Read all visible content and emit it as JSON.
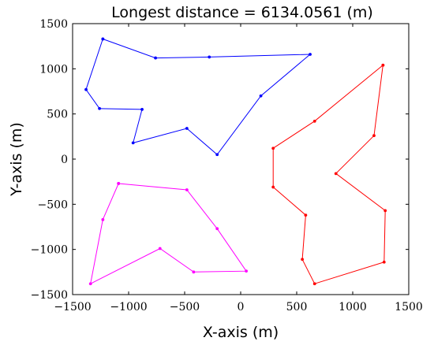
{
  "chart_data": {
    "type": "line",
    "title": "Longest distance = 6134.0561 (m)",
    "xlabel": "X-axis (m)",
    "ylabel": "Y-axis (m)",
    "xlim": [
      -1500,
      1500
    ],
    "ylim": [
      -1500,
      1500
    ],
    "xticks": [
      -1500,
      -1000,
      -500,
      0,
      500,
      1000,
      1500
    ],
    "yticks": [
      -1500,
      -1000,
      -500,
      0,
      500,
      1000,
      1500
    ],
    "xtick_labels": [
      "−1500",
      "−1000",
      "−500",
      "0",
      "500",
      "1000",
      "1500"
    ],
    "ytick_labels": [
      "−1500",
      "−1000",
      "−500",
      "0",
      "500",
      "1000",
      "1500"
    ],
    "grid": false,
    "series": [
      {
        "color": "#0000ff",
        "points": [
          [
            -1230,
            1330
          ],
          [
            -760,
            1120
          ],
          [
            -280,
            1130
          ],
          [
            620,
            1160
          ],
          [
            180,
            700
          ],
          [
            -210,
            50
          ],
          [
            -480,
            340
          ],
          [
            -960,
            180
          ],
          [
            -880,
            550
          ],
          [
            -1260,
            560
          ],
          [
            -1380,
            770
          ],
          [
            -1230,
            1330
          ]
        ]
      },
      {
        "color": "#ff0000",
        "points": [
          [
            1270,
            1040
          ],
          [
            1190,
            260
          ],
          [
            850,
            -160
          ],
          [
            1290,
            -570
          ],
          [
            1280,
            -1140
          ],
          [
            660,
            -1380
          ],
          [
            550,
            -1110
          ],
          [
            580,
            -620
          ],
          [
            290,
            -310
          ],
          [
            290,
            120
          ],
          [
            660,
            420
          ],
          [
            1270,
            1040
          ]
        ]
      },
      {
        "color": "#ff00ff",
        "points": [
          [
            -1090,
            -270
          ],
          [
            -480,
            -340
          ],
          [
            -210,
            -770
          ],
          [
            50,
            -1240
          ],
          [
            -420,
            -1250
          ],
          [
            -720,
            -990
          ],
          [
            -1340,
            -1380
          ],
          [
            -1230,
            -670
          ],
          [
            -1090,
            -270
          ]
        ]
      }
    ]
  }
}
